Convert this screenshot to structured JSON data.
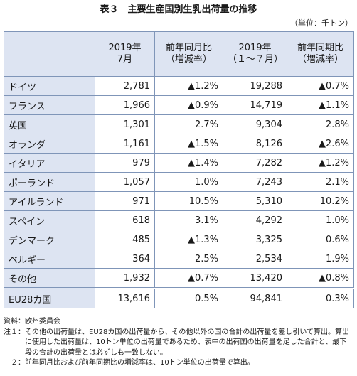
{
  "title": "表３　主要生産国別生乳出荷量の推移",
  "unit": "（単位：千トン）",
  "table": {
    "header": [
      [
        "2019年",
        "7月"
      ],
      [
        "前年同月比",
        "（増減率）"
      ],
      [
        "2019年",
        "（１～７月）"
      ],
      [
        "前年同期比",
        "（増減率）"
      ]
    ],
    "rows": [
      [
        "ドイツ",
        "2,781",
        "▲1.2%",
        "19,288",
        "▲0.7%"
      ],
      [
        "フランス",
        "1,966",
        "▲0.9%",
        "14,719",
        "▲1.1%"
      ],
      [
        "英国",
        "1,301",
        "2.7%",
        "9,304",
        "2.8%"
      ],
      [
        "オランダ",
        "1,161",
        "▲1.5%",
        "8,126",
        "▲2.6%"
      ],
      [
        "イタリア",
        "979",
        "▲1.4%",
        "7,282",
        "▲1.2%"
      ],
      [
        "ポーランド",
        "1,057",
        "1.0%",
        "7,243",
        "2.1%"
      ],
      [
        "アイルランド",
        "971",
        "10.5%",
        "5,310",
        "10.2%"
      ],
      [
        "スペイン",
        "618",
        "3.1%",
        "4,292",
        "1.0%"
      ],
      [
        "デンマーク",
        "485",
        "▲1.3%",
        "3,325",
        "0.6%"
      ],
      [
        "ベルギー",
        "364",
        "2.5%",
        "2,534",
        "1.9%"
      ],
      [
        "その他",
        "1,932",
        "▲0.7%",
        "13,420",
        "▲0.8%"
      ]
    ],
    "total": [
      "EU28カ国",
      "13,616",
      "0.5%",
      "94,841",
      "0.3%"
    ]
  },
  "notes": {
    "source": "資料：欧州委員会",
    "items": [
      {
        "label": "注１：",
        "text": "その他の出荷量は、EU28カ国の出荷量から、その他以外の国の合計の出荷量を差し引いて算出。算出に使用した出荷量は、10トン単位の出荷量であるため、表中の出荷国の出荷量を足した合計と、最下段の合計の出荷量とは必ずしも一致しない。"
      },
      {
        "label": "　２：",
        "text": "前年同月比および前年同期比の増減率は、10トン単位の出荷量で算出。"
      }
    ]
  }
}
